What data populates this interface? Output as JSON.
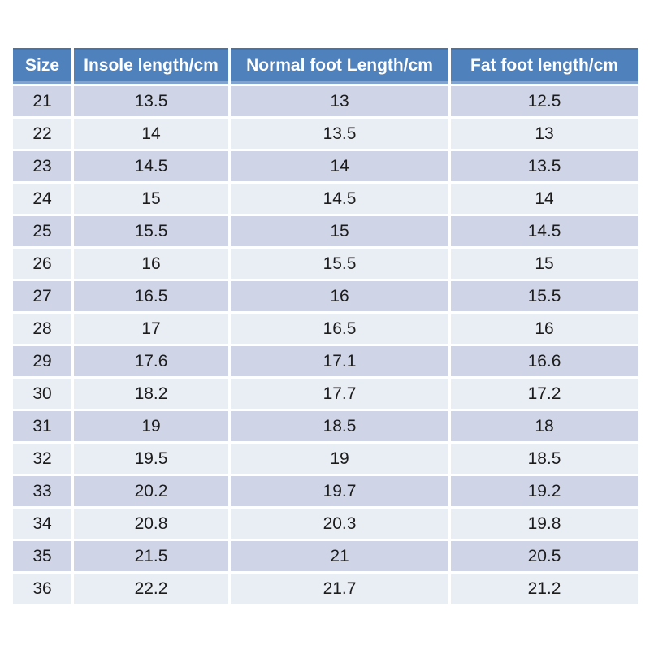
{
  "chart_data": {
    "type": "table",
    "columns": [
      "Size",
      "Insole length/cm",
      "Normal foot Length/cm",
      "Fat foot length/cm"
    ],
    "rows": [
      [
        "21",
        "13.5",
        "13",
        "12.5"
      ],
      [
        "22",
        "14",
        "13.5",
        "13"
      ],
      [
        "23",
        "14.5",
        "14",
        "13.5"
      ],
      [
        "24",
        "15",
        "14.5",
        "14"
      ],
      [
        "25",
        "15.5",
        "15",
        "14.5"
      ],
      [
        "26",
        "16",
        "15.5",
        "15"
      ],
      [
        "27",
        "16.5",
        "16",
        "15.5"
      ],
      [
        "28",
        "17",
        "16.5",
        "16"
      ],
      [
        "29",
        "17.6",
        "17.1",
        "16.6"
      ],
      [
        "30",
        "18.2",
        "17.7",
        "17.2"
      ],
      [
        "31",
        "19",
        "18.5",
        "18"
      ],
      [
        "32",
        "19.5",
        "19",
        "18.5"
      ],
      [
        "33",
        "20.2",
        "19.7",
        "19.2"
      ],
      [
        "34",
        "20.8",
        "20.3",
        "19.8"
      ],
      [
        "35",
        "21.5",
        "21",
        "20.5"
      ],
      [
        "36",
        "22.2",
        "21.7",
        "21.2"
      ]
    ],
    "layout": {
      "banded_rows": true,
      "first_band": "dark",
      "cell_alignment": "center"
    }
  },
  "colors": {
    "header_bg": "#4f81bd",
    "header_text": "#ffffff",
    "row_band_dark": "#cfd5e6",
    "row_band_light": "#e9edf4",
    "cell_text": "#1c1c1c",
    "divider": "#ffffff"
  }
}
